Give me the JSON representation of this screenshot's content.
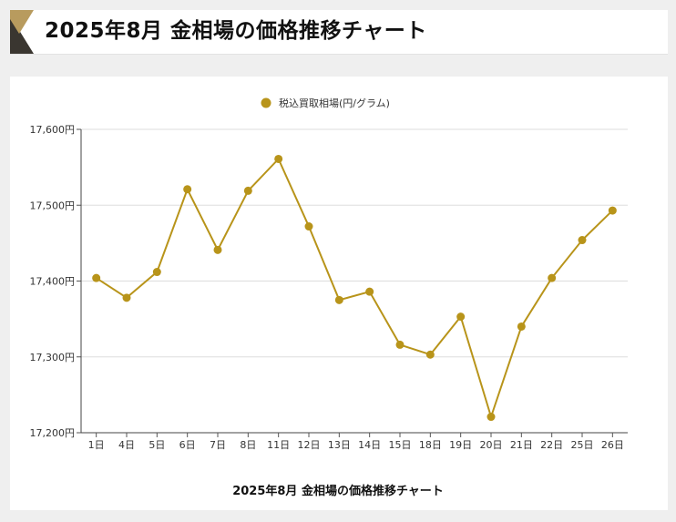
{
  "header": {
    "title": "2025年8月 金相場の価格推移チャート"
  },
  "colors": {
    "accent": "#b8941a",
    "logo_gold": "#b89b5e",
    "logo_dark": "#3a3630"
  },
  "chart_data": {
    "type": "line",
    "title": "2025年8月 金相場の価格推移チャート",
    "legend": {
      "label": "税込買取相場(円/グラム)",
      "placement": "top-center"
    },
    "x": [
      "1日",
      "4日",
      "5日",
      "6日",
      "7日",
      "8日",
      "11日",
      "12日",
      "13日",
      "14日",
      "15日",
      "18日",
      "19日",
      "20日",
      "21日",
      "22日",
      "25日",
      "26日"
    ],
    "series": [
      {
        "name": "税込買取相場(円/グラム)",
        "values": [
          17404,
          17378,
          17412,
          17521,
          17441,
          17519,
          17561,
          17472,
          17375,
          17386,
          17316,
          17303,
          17353,
          17221,
          17340,
          17404,
          17454,
          17493
        ]
      }
    ],
    "ylim": [
      17200,
      17600
    ],
    "yticks": [
      "17,200円",
      "17,300円",
      "17,400円",
      "17,500円",
      "17,600円"
    ],
    "grid": true
  }
}
